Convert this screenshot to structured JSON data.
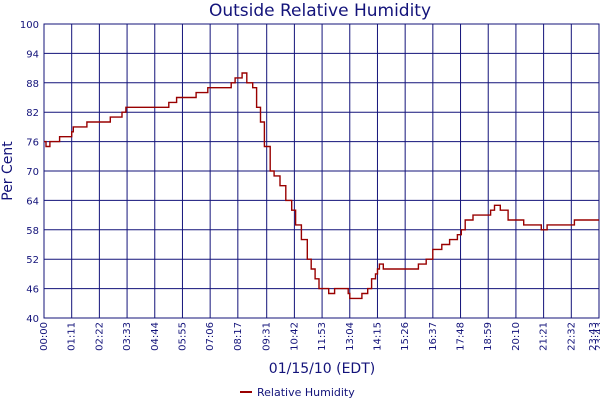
{
  "chart_data": {
    "type": "line",
    "title": "Outside Relative Humidity",
    "xlabel": "01/15/10 (EDT)",
    "ylabel": "Per Cent",
    "ylim": [
      40,
      100
    ],
    "yticks": [
      40,
      46,
      52,
      58,
      64,
      70,
      76,
      82,
      88,
      94,
      100
    ],
    "xlim_hours": [
      0,
      23.717
    ],
    "xticks": [
      "00:00",
      "01:11",
      "02:22",
      "03:33",
      "04:44",
      "05:55",
      "07:06",
      "08:17",
      "09:31",
      "10:42",
      "11:53",
      "13:04",
      "14:15",
      "15:26",
      "16:37",
      "17:48",
      "18:59",
      "20:10",
      "21:21",
      "22:32",
      "23:43",
      "23:43"
    ],
    "grid": true,
    "legend_position": "bottom-center",
    "series": [
      {
        "name": "Relative Humidity",
        "color": "#990000",
        "points": [
          [
            "00:00",
            76
          ],
          [
            "00:05",
            75
          ],
          [
            "00:15",
            76
          ],
          [
            "00:30",
            76
          ],
          [
            "00:40",
            77
          ],
          [
            "01:11",
            78
          ],
          [
            "01:15",
            79
          ],
          [
            "01:40",
            79
          ],
          [
            "01:50",
            80
          ],
          [
            "02:15",
            80
          ],
          [
            "02:30",
            80
          ],
          [
            "02:50",
            81
          ],
          [
            "03:20",
            82
          ],
          [
            "03:30",
            83
          ],
          [
            "04:00",
            83
          ],
          [
            "04:44",
            83
          ],
          [
            "05:05",
            83
          ],
          [
            "05:20",
            84
          ],
          [
            "05:40",
            85
          ],
          [
            "06:10",
            85
          ],
          [
            "06:30",
            86
          ],
          [
            "07:00",
            87
          ],
          [
            "07:30",
            87
          ],
          [
            "07:50",
            87
          ],
          [
            "08:00",
            88
          ],
          [
            "08:10",
            89
          ],
          [
            "08:20",
            89
          ],
          [
            "08:28",
            90
          ],
          [
            "08:40",
            88
          ],
          [
            "08:55",
            87
          ],
          [
            "09:05",
            83
          ],
          [
            "09:15",
            80
          ],
          [
            "09:25",
            75
          ],
          [
            "09:40",
            70
          ],
          [
            "09:50",
            69
          ],
          [
            "10:05",
            67
          ],
          [
            "10:20",
            64
          ],
          [
            "10:35",
            62
          ],
          [
            "10:45",
            59
          ],
          [
            "11:00",
            56
          ],
          [
            "11:15",
            52
          ],
          [
            "11:25",
            50
          ],
          [
            "11:35",
            48
          ],
          [
            "11:45",
            46
          ],
          [
            "11:53",
            46
          ],
          [
            "12:10",
            45
          ],
          [
            "12:25",
            46
          ],
          [
            "12:40",
            46
          ],
          [
            "13:00",
            45
          ],
          [
            "13:04",
            44
          ],
          [
            "13:20",
            44
          ],
          [
            "13:35",
            45
          ],
          [
            "13:50",
            46
          ],
          [
            "14:00",
            48
          ],
          [
            "14:10",
            49
          ],
          [
            "14:15",
            50
          ],
          [
            "14:20",
            51
          ],
          [
            "14:30",
            50
          ],
          [
            "15:00",
            50
          ],
          [
            "15:26",
            50
          ],
          [
            "15:45",
            50
          ],
          [
            "16:00",
            51
          ],
          [
            "16:20",
            52
          ],
          [
            "16:37",
            54
          ],
          [
            "17:00",
            55
          ],
          [
            "17:20",
            56
          ],
          [
            "17:40",
            57
          ],
          [
            "17:50",
            58
          ],
          [
            "18:00",
            60
          ],
          [
            "18:20",
            61
          ],
          [
            "18:40",
            61
          ],
          [
            "19:00",
            61
          ],
          [
            "19:05",
            62
          ],
          [
            "19:15",
            63
          ],
          [
            "19:30",
            62
          ],
          [
            "19:50",
            60
          ],
          [
            "20:10",
            60
          ],
          [
            "20:30",
            59
          ],
          [
            "21:00",
            59
          ],
          [
            "21:15",
            58
          ],
          [
            "21:21",
            58
          ],
          [
            "21:30",
            59
          ],
          [
            "22:00",
            59
          ],
          [
            "22:32",
            59
          ],
          [
            "22:40",
            60
          ],
          [
            "23:10",
            60
          ],
          [
            "23:43",
            60
          ]
        ]
      }
    ]
  }
}
